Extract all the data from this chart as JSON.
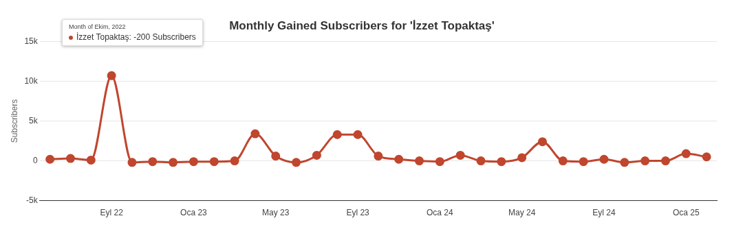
{
  "chart_data": {
    "type": "line",
    "title": "Monthly Gained Subscribers for 'İzzet Topaktaş'",
    "ylabel": "Subscribers",
    "categories": [
      null,
      null,
      null,
      "Eyl 22",
      null,
      null,
      null,
      "Oca 23",
      null,
      null,
      null,
      "May 23",
      null,
      null,
      null,
      "Eyl 23",
      null,
      null,
      null,
      "Oca 24",
      null,
      null,
      null,
      "May 24",
      null,
      null,
      null,
      "Eyl 24",
      null,
      null,
      null,
      "Oca 25",
      null
    ],
    "series": [
      {
        "color": "#c0462e",
        "values": [
          200,
          300,
          100,
          10700,
          -200,
          -100,
          -200,
          -100,
          -100,
          0,
          3400,
          600,
          -200,
          700,
          3300,
          3300,
          600,
          200,
          0,
          -100,
          700,
          0,
          -100,
          400,
          2400,
          0,
          -100,
          200,
          -200,
          0,
          0,
          900,
          500
        ]
      }
    ],
    "ylim": [
      -5000,
      15000
    ],
    "yticks": [
      {
        "value": -5000,
        "label": "-5k"
      },
      {
        "value": 0,
        "label": "0"
      },
      {
        "value": 5000,
        "label": "5k"
      },
      {
        "value": 10000,
        "label": "10k"
      },
      {
        "value": 15000,
        "label": "15k"
      }
    ],
    "grid": "y",
    "legend": false,
    "marker": "circle",
    "line_style": "solid",
    "annotations": [
      "Month of Ekim, 2022",
      "İzzet Topaktaş: -200 Subscribers"
    ]
  }
}
